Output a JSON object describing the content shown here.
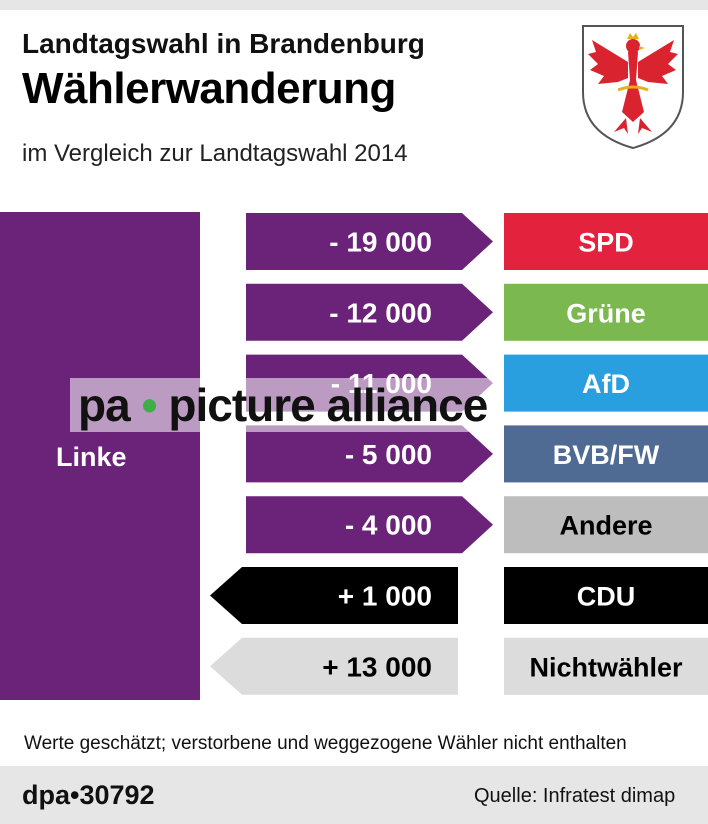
{
  "header": {
    "title_line1": "Landtagswahl in Brandenburg",
    "title_line2": "Wählerwanderung",
    "subtitle": "im Vergleich zur Landtagswahl 2014"
  },
  "chart_data": {
    "type": "bar",
    "title": "Wählerwanderung",
    "base_party": "Linke",
    "categories": [
      "SPD",
      "Grüne",
      "AfD",
      "BVB/FW",
      "Andere",
      "CDU",
      "Nichtwähler"
    ],
    "values": [
      -19000,
      -12000,
      -11000,
      -5000,
      -4000,
      1000,
      13000
    ],
    "value_labels": [
      "- 19 000",
      "- 12 000",
      "- 11 000",
      "- 5 000",
      "- 4 000",
      "+ 1 000",
      "+ 13 000"
    ],
    "party_colors": [
      "#e3223e",
      "#7bb84f",
      "#2a9fdf",
      "#4f6a93",
      "#bdbdbd",
      "#000000",
      "#dcdcdc"
    ],
    "party_text_colors": [
      "#ffffff",
      "#ffffff",
      "#ffffff",
      "#ffffff",
      "#000000",
      "#ffffff",
      "#000000"
    ]
  },
  "colors": {
    "linke": "#6a2379",
    "loss_arrow": "#6a2379",
    "gain_cdu": "#000000",
    "gain_nonvoter": "#dcdcdc"
  },
  "note": "Werte geschätzt; verstorbene und weggezogene Wähler nicht enthalten",
  "footer": {
    "agency": "dpa•30792",
    "source": "Quelle: Infratest dimap"
  },
  "watermark": {
    "left": "pa",
    "dot": "•",
    "right": "picture alliance"
  },
  "crest": {
    "icon": "brandenburg-eagle-icon"
  }
}
